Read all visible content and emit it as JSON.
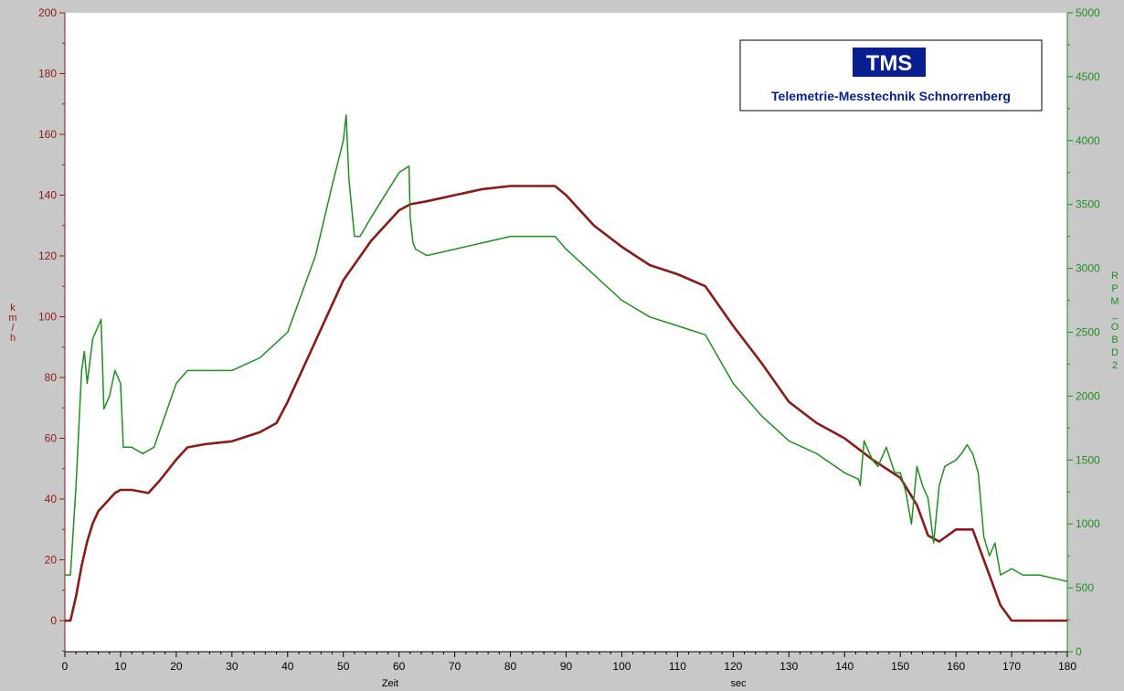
{
  "logo": {
    "mark": "TMS",
    "company": "Telemetrie-Messtechnik Schnorrenberg",
    "colors": {
      "mark_bg": "#0a1f8f",
      "text": "#0a1f8f"
    }
  },
  "chart_data": {
    "type": "line",
    "title": "",
    "x_axis": {
      "range": [
        0,
        180
      ],
      "ticks": [
        0,
        10,
        20,
        30,
        40,
        50,
        60,
        70,
        80,
        90,
        100,
        110,
        120,
        130,
        140,
        150,
        160,
        170,
        180
      ],
      "label": "Zeit",
      "unit_label": "sec"
    },
    "y_axis_left": {
      "range": [
        -10,
        200
      ],
      "ticks": [
        0,
        20,
        40,
        60,
        80,
        100,
        120,
        140,
        160,
        180,
        200
      ],
      "label_chars": [
        "k",
        "m",
        "/",
        "h"
      ],
      "color": "#8b1a1a"
    },
    "y_axis_right": {
      "range": [
        0,
        5000
      ],
      "ticks": [
        0,
        500,
        1000,
        1500,
        2000,
        2500,
        3000,
        3500,
        4000,
        4500,
        5000
      ],
      "label_chars": [
        "R",
        "P",
        "M",
        "_",
        "O",
        "B",
        "D",
        "2"
      ],
      "color": "#1f8f1f"
    },
    "grid": false,
    "series": [
      {
        "name": "km/h",
        "axis": "left",
        "color": "#8b1a1a",
        "x": [
          0,
          1,
          2,
          3,
          4,
          5,
          6,
          7,
          8,
          9,
          10,
          12,
          15,
          17,
          20,
          22,
          25,
          30,
          35,
          38,
          40,
          45,
          50,
          55,
          60,
          62,
          65,
          70,
          75,
          80,
          85,
          88,
          90,
          95,
          100,
          105,
          110,
          115,
          120,
          125,
          130,
          135,
          140,
          145,
          150,
          153,
          155,
          157,
          160,
          163,
          165,
          167,
          168,
          170,
          175,
          180
        ],
        "y": [
          0,
          0,
          8,
          18,
          26,
          32,
          36,
          38,
          40,
          42,
          43,
          43,
          42,
          46,
          53,
          57,
          58,
          59,
          62,
          65,
          72,
          92,
          112,
          125,
          135,
          137,
          138,
          140,
          142,
          143,
          143,
          143,
          140,
          130,
          123,
          117,
          114,
          110,
          97,
          85,
          72,
          65,
          60,
          53,
          47,
          38,
          28,
          26,
          30,
          30,
          20,
          10,
          5,
          0,
          0,
          0
        ]
      },
      {
        "name": "RPM_OBD2",
        "axis": "right",
        "color": "#1f8f1f",
        "x": [
          0,
          1,
          2,
          3,
          3.5,
          4,
          5,
          6,
          6.5,
          7,
          8,
          9,
          10,
          10.5,
          12,
          14,
          16,
          18,
          20,
          22,
          25,
          30,
          35,
          40,
          45,
          48,
          50,
          50.5,
          51,
          52,
          53,
          55,
          60,
          61.8,
          62,
          62.5,
          63,
          65,
          70,
          75,
          80,
          85,
          88,
          90,
          95,
          100,
          105,
          110,
          115,
          120,
          125,
          130,
          135,
          140,
          142.5,
          142.8,
          143.5,
          145,
          146,
          147.5,
          149,
          150,
          151,
          152,
          153,
          154,
          155,
          156,
          157,
          158,
          160,
          161,
          162,
          163,
          164,
          164.5,
          165,
          166,
          167,
          168,
          170,
          172,
          175,
          180
        ],
        "y": [
          600,
          600,
          1300,
          2200,
          2350,
          2100,
          2450,
          2550,
          2600,
          1900,
          2000,
          2200,
          2100,
          1600,
          1600,
          1550,
          1600,
          1850,
          2100,
          2200,
          2200,
          2200,
          2300,
          2500,
          3100,
          3650,
          4000,
          4200,
          3700,
          3250,
          3250,
          3400,
          3750,
          3800,
          3400,
          3200,
          3150,
          3100,
          3150,
          3200,
          3250,
          3250,
          3250,
          3150,
          2950,
          2750,
          2620,
          2550,
          2480,
          2100,
          1850,
          1650,
          1550,
          1400,
          1350,
          1300,
          1650,
          1500,
          1450,
          1600,
          1400,
          1400,
          1250,
          1000,
          1450,
          1300,
          1200,
          850,
          1300,
          1450,
          1500,
          1550,
          1620,
          1550,
          1400,
          1150,
          900,
          750,
          850,
          600,
          650,
          600,
          600,
          550
        ]
      }
    ]
  }
}
